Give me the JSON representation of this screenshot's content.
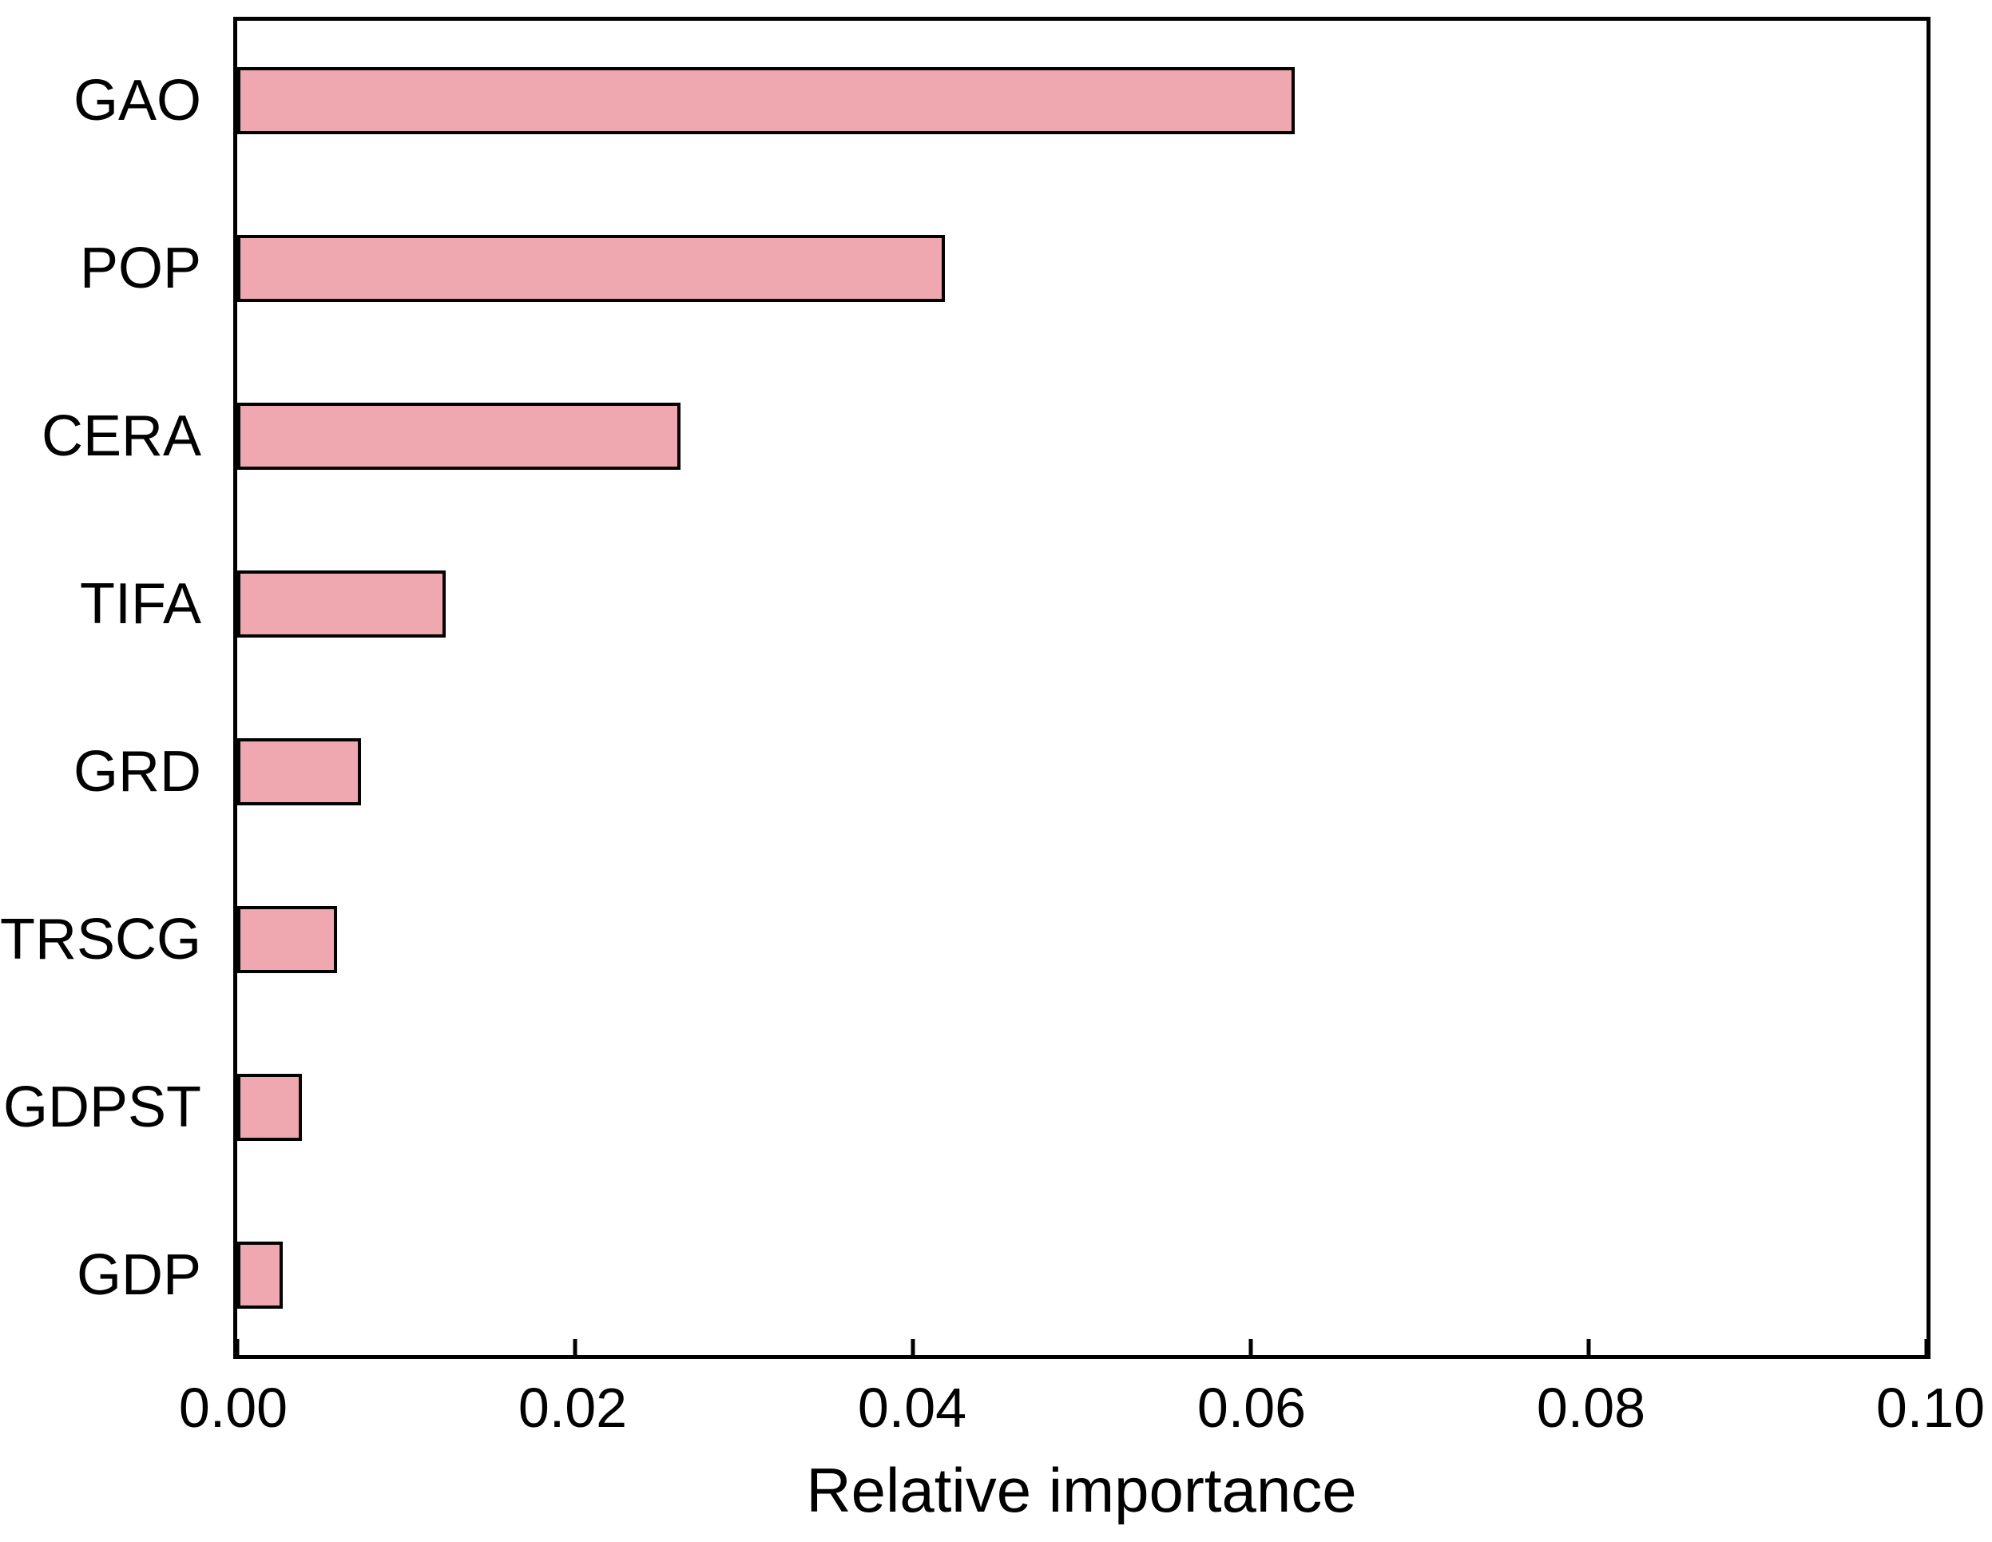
{
  "figure": {
    "background_color": "#ffffff",
    "text_color": "#000000"
  },
  "chart_data": {
    "type": "bar",
    "orientation": "horizontal",
    "title": "",
    "xlabel": "Relative importance",
    "ylabel": "",
    "categories": [
      "GAO",
      "POP",
      "CERA",
      "TIFA",
      "GRD",
      "TRSCG",
      "GDPST",
      "GDP"
    ],
    "values": [
      0.0623,
      0.0417,
      0.0261,
      0.0123,
      0.0073,
      0.0059,
      0.0038,
      0.0027
    ],
    "xlim": [
      0.0,
      0.1
    ],
    "x_ticks": [
      {
        "value": 0.0,
        "label": "0.00"
      },
      {
        "value": 0.02,
        "label": "0.02"
      },
      {
        "value": 0.04,
        "label": "0.04"
      },
      {
        "value": 0.06,
        "label": "0.06"
      },
      {
        "value": 0.08,
        "label": "0.08"
      },
      {
        "value": 0.1,
        "label": "0.10"
      }
    ],
    "grid": false,
    "legend": false,
    "tick_direction": "in",
    "bar_fill_color": "#F0A8B0",
    "bar_edge_color": "#000000",
    "axis_color": "#000000"
  }
}
